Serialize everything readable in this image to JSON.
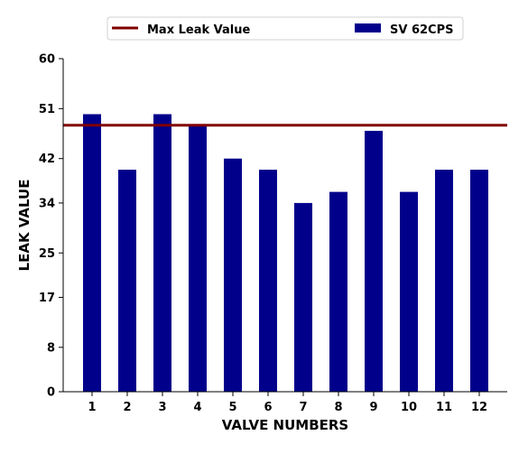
{
  "chart_data": {
    "type": "bar",
    "xlabel": "VALVE NUMBERS",
    "ylabel": "LEAK VALUE",
    "categories": [
      "1",
      "2",
      "3",
      "4",
      "5",
      "6",
      "7",
      "8",
      "9",
      "10",
      "11",
      "12"
    ],
    "series": [
      {
        "name": "SV 62CPS",
        "color": "#00008b",
        "values": [
          50,
          40,
          50,
          48,
          42,
          40,
          34,
          36,
          47,
          36,
          40,
          40
        ]
      }
    ],
    "reference_lines": [
      {
        "name": "Max Leak Value",
        "y": 48,
        "color": "#800000"
      }
    ],
    "ylim": [
      0,
      60
    ],
    "yticks": [
      "0",
      "8",
      "17",
      "25",
      "34",
      "42",
      "51",
      "60"
    ],
    "grid": false,
    "legend": {
      "placement": "top",
      "entries": [
        "Max Leak Value",
        "SV 62CPS"
      ]
    }
  }
}
